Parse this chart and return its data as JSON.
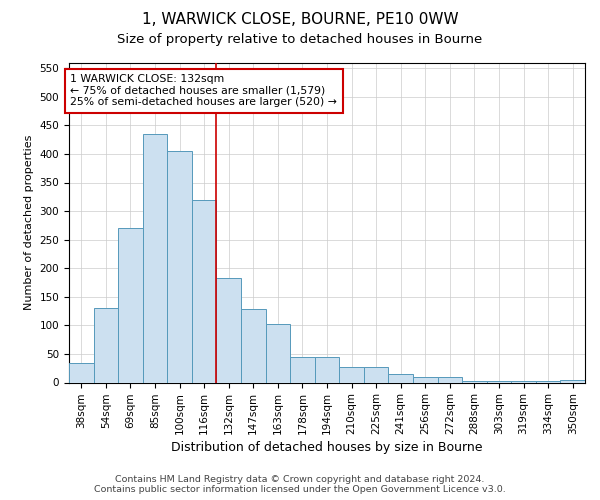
{
  "title": "1, WARWICK CLOSE, BOURNE, PE10 0WW",
  "subtitle": "Size of property relative to detached houses in Bourne",
  "xlabel": "Distribution of detached houses by size in Bourne",
  "ylabel": "Number of detached properties",
  "footer_line1": "Contains HM Land Registry data © Crown copyright and database right 2024.",
  "footer_line2": "Contains public sector information licensed under the Open Government Licence v3.0.",
  "bin_labels": [
    "38sqm",
    "54sqm",
    "69sqm",
    "85sqm",
    "100sqm",
    "116sqm",
    "132sqm",
    "147sqm",
    "163sqm",
    "178sqm",
    "194sqm",
    "210sqm",
    "225sqm",
    "241sqm",
    "256sqm",
    "272sqm",
    "288sqm",
    "303sqm",
    "319sqm",
    "334sqm",
    "350sqm"
  ],
  "bar_values": [
    35,
    130,
    270,
    435,
    405,
    320,
    183,
    128,
    103,
    45,
    45,
    28,
    28,
    15,
    10,
    9,
    3,
    3,
    3,
    2,
    5
  ],
  "bar_color": "#cce0f0",
  "bar_edge_color": "#5599bb",
  "grid_color": "#cccccc",
  "vline_position": 6,
  "vline_color": "#cc0000",
  "annotation_line1": "1 WARWICK CLOSE: 132sqm",
  "annotation_line2": "← 75% of detached houses are smaller (1,579)",
  "annotation_line3": "25% of semi-detached houses are larger (520) →",
  "annotation_box_color": "#cc0000",
  "ylim": [
    0,
    560
  ],
  "yticks": [
    0,
    50,
    100,
    150,
    200,
    250,
    300,
    350,
    400,
    450,
    500,
    550
  ],
  "title_fontsize": 11,
  "subtitle_fontsize": 9.5,
  "xlabel_fontsize": 9,
  "ylabel_fontsize": 8,
  "tick_fontsize": 7.5,
  "annotation_fontsize": 7.8,
  "footer_fontsize": 6.8,
  "background_color": "#ffffff"
}
